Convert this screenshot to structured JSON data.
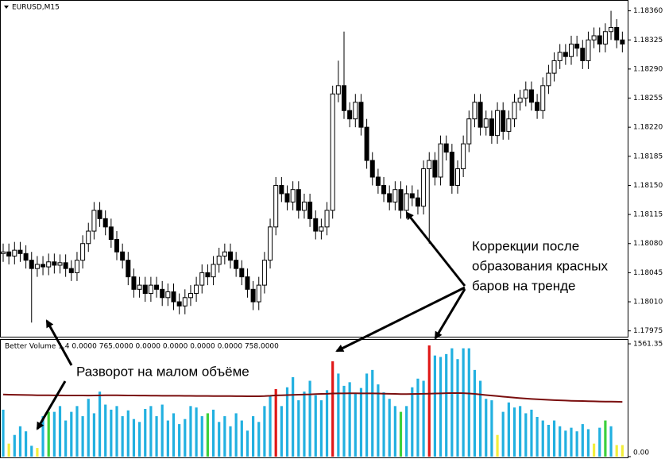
{
  "chart_data": [
    {
      "type": "candlestick",
      "title": "EURUSD,M15",
      "open": [
        1.18068,
        1.1807,
        1.18065,
        1.18072,
        1.18068,
        1.1806,
        1.1805,
        1.18055,
        1.18052,
        1.18058,
        1.18054,
        1.18057,
        1.1805,
        1.18045,
        1.1806,
        1.1808,
        1.18095,
        1.1812,
        1.1811,
        1.181,
        1.18085,
        1.1807,
        1.1806,
        1.1804,
        1.18025,
        1.1803,
        1.1802,
        1.1803,
        1.18025,
        1.18015,
        1.18022,
        1.1801,
        1.18005,
        1.18015,
        1.1802,
        1.1803,
        1.18045,
        1.1804,
        1.18055,
        1.18065,
        1.1807,
        1.1806,
        1.1805,
        1.1804,
        1.18025,
        1.1801,
        1.1803,
        1.1806,
        1.181,
        1.1815,
        1.1814,
        1.1813,
        1.18145,
        1.1812,
        1.1813,
        1.1811,
        1.18095,
        1.181,
        1.1812,
        1.1826,
        1.1827,
        1.1824,
        1.1823,
        1.1825,
        1.1822,
        1.1818,
        1.1816,
        1.1815,
        1.1814,
        1.1813,
        1.18145,
        1.1812,
        1.1814,
        1.18135,
        1.18125,
        1.1817,
        1.1818,
        1.1816,
        1.182,
        1.1819,
        1.1815,
        1.1817,
        1.182,
        1.1823,
        1.1825,
        1.1822,
        1.1823,
        1.1821,
        1.1824,
        1.18215,
        1.1823,
        1.1825,
        1.18255,
        1.18265,
        1.1825,
        1.1824,
        1.1827,
        1.18285,
        1.183,
        1.1831,
        1.18305,
        1.1832,
        1.18315,
        1.183,
        1.18325,
        1.1833,
        1.1832,
        1.18335,
        1.1834,
        1.18325
      ],
      "high": [
        1.1808,
        1.1808,
        1.18082,
        1.18082,
        1.18078,
        1.1807,
        1.18065,
        1.18065,
        1.18068,
        1.18068,
        1.18067,
        1.18067,
        1.1806,
        1.1807,
        1.1809,
        1.18105,
        1.1813,
        1.1813,
        1.1812,
        1.1811,
        1.18095,
        1.1808,
        1.1807,
        1.1805,
        1.1804,
        1.1804,
        1.1804,
        1.1804,
        1.18035,
        1.18032,
        1.18032,
        1.1802,
        1.18025,
        1.1803,
        1.1804,
        1.18055,
        1.18055,
        1.18065,
        1.18075,
        1.1808,
        1.1808,
        1.1807,
        1.1806,
        1.1805,
        1.18035,
        1.1804,
        1.1807,
        1.1811,
        1.1816,
        1.1816,
        1.1815,
        1.18155,
        1.18155,
        1.1814,
        1.1814,
        1.1812,
        1.1811,
        1.1813,
        1.1827,
        1.183,
        1.18335,
        1.1825,
        1.1826,
        1.1826,
        1.1823,
        1.1819,
        1.1817,
        1.1816,
        1.1815,
        1.18155,
        1.18155,
        1.1815,
        1.1815,
        1.18145,
        1.1818,
        1.1819,
        1.1819,
        1.1821,
        1.1821,
        1.182,
        1.1818,
        1.1821,
        1.1824,
        1.1826,
        1.1826,
        1.1824,
        1.1824,
        1.1825,
        1.1825,
        1.1824,
        1.1826,
        1.18265,
        1.18275,
        1.18275,
        1.1826,
        1.1828,
        1.18295,
        1.1831,
        1.1832,
        1.1832,
        1.1833,
        1.1833,
        1.18325,
        1.18335,
        1.1834,
        1.1834,
        1.18345,
        1.1836,
        1.1835,
        1.18335
      ],
      "low": [
        1.18058,
        1.18055,
        1.18055,
        1.18058,
        1.1805,
        1.17985,
        1.1804,
        1.18042,
        1.18042,
        1.18044,
        1.18044,
        1.1804,
        1.18035,
        1.18035,
        1.1805,
        1.1807,
        1.18085,
        1.181,
        1.1809,
        1.18075,
        1.1806,
        1.1805,
        1.1803,
        1.18015,
        1.18015,
        1.1801,
        1.1801,
        1.18015,
        1.18005,
        1.18005,
        1.18,
        1.17995,
        1.17995,
        1.18005,
        1.1801,
        1.1802,
        1.1803,
        1.1803,
        1.18045,
        1.18055,
        1.1805,
        1.1804,
        1.1803,
        1.18015,
        1.18,
        1.18,
        1.1802,
        1.1805,
        1.1809,
        1.1813,
        1.1812,
        1.1812,
        1.1811,
        1.1811,
        1.181,
        1.18085,
        1.18085,
        1.1809,
        1.1811,
        1.1825,
        1.1823,
        1.1822,
        1.1822,
        1.1821,
        1.1817,
        1.1815,
        1.1814,
        1.1813,
        1.1812,
        1.1812,
        1.1811,
        1.1811,
        1.18125,
        1.18115,
        1.18115,
        1.1808,
        1.1815,
        1.1815,
        1.1818,
        1.1814,
        1.1814,
        1.1816,
        1.1819,
        1.1822,
        1.1821,
        1.1821,
        1.182,
        1.182,
        1.18205,
        1.18205,
        1.1822,
        1.1824,
        1.18245,
        1.1824,
        1.1823,
        1.1823,
        1.1826,
        1.18275,
        1.1829,
        1.18295,
        1.18295,
        1.18305,
        1.1829,
        1.1829,
        1.18315,
        1.1831,
        1.1831,
        1.18325,
        1.18315,
        1.1831
      ],
      "close": [
        1.1807,
        1.18065,
        1.18072,
        1.18068,
        1.1806,
        1.1805,
        1.18055,
        1.18052,
        1.18058,
        1.18054,
        1.18057,
        1.1805,
        1.18045,
        1.1806,
        1.1808,
        1.18095,
        1.1812,
        1.1811,
        1.181,
        1.18085,
        1.1807,
        1.1806,
        1.1804,
        1.18025,
        1.1803,
        1.1802,
        1.1803,
        1.18025,
        1.18015,
        1.18022,
        1.1801,
        1.18005,
        1.18015,
        1.1802,
        1.1803,
        1.18045,
        1.1804,
        1.18055,
        1.18065,
        1.1807,
        1.1806,
        1.1805,
        1.1804,
        1.18025,
        1.1801,
        1.1803,
        1.1806,
        1.181,
        1.1815,
        1.1814,
        1.1813,
        1.18145,
        1.1812,
        1.1813,
        1.1811,
        1.18095,
        1.181,
        1.1812,
        1.1826,
        1.1827,
        1.1824,
        1.1823,
        1.1825,
        1.1822,
        1.1818,
        1.1816,
        1.1815,
        1.1814,
        1.1813,
        1.18145,
        1.1812,
        1.1814,
        1.18135,
        1.18125,
        1.1817,
        1.1818,
        1.1816,
        1.182,
        1.1819,
        1.1815,
        1.1817,
        1.182,
        1.1823,
        1.1825,
        1.1822,
        1.1823,
        1.1821,
        1.1824,
        1.18215,
        1.1823,
        1.1825,
        1.18255,
        1.18265,
        1.1825,
        1.1824,
        1.1827,
        1.18285,
        1.183,
        1.1831,
        1.18305,
        1.1832,
        1.18315,
        1.183,
        1.18325,
        1.1833,
        1.1832,
        1.18335,
        1.1834,
        1.18325,
        1.1832
      ],
      "ylim": [
        1.17968,
        1.18373
      ],
      "yticks": [
        1.17975,
        {
          "value": 1.1801,
          "label": "1.18010"
        },
        1.18045,
        {
          "value": 1.1808,
          "label": "1.18080"
        },
        1.18115,
        {
          "value": 1.1815,
          "label": "1.18150"
        },
        1.18185,
        {
          "value": 1.1822,
          "label": "1.18220"
        },
        1.18255,
        {
          "value": 1.1829,
          "label": "1.18290"
        },
        1.18325,
        {
          "value": 1.1836,
          "label": "1.18360"
        }
      ],
      "annotations": [
        "Коррекции после",
        "образования красных",
        "баров на тренде"
      ]
    },
    {
      "type": "bar",
      "title": "Better Volume 1.4 0.0000 765.0000 0.0000 0.0000 0.0000 0.0000 758.0000",
      "series": [
        {
          "type": "bar",
          "values": [
            650,
            180,
            300,
            420,
            350,
            150,
            120,
            560,
            620,
            620,
            700,
            500,
            620,
            700,
            560,
            800,
            600,
            900,
            720,
            650,
            700,
            560,
            640,
            520,
            480,
            660,
            700,
            560,
            720,
            500,
            600,
            450,
            520,
            700,
            680,
            560,
            600,
            650,
            480,
            560,
            420,
            600,
            500,
            360,
            560,
            480,
            700,
            850,
            935,
            700,
            960,
            1100,
            780,
            900,
            1050,
            850,
            780,
            920,
            1320,
            1150,
            980,
            1030,
            880,
            950,
            1150,
            1200,
            1000,
            890,
            800,
            700,
            620,
            700,
            960,
            1080,
            1050,
            1540,
            1400,
            1380,
            1420,
            1500,
            1350,
            1500,
            1500,
            1200,
            1050,
            800,
            780,
            300,
            620,
            750,
            680,
            700,
            600,
            650,
            550,
            500,
            440,
            500,
            420,
            360,
            400,
            350,
            450,
            380,
            180,
            400,
            500,
            420,
            160,
            160
          ],
          "colors": [
            "#22b0e0",
            "#f2ee3a",
            "#22b0e0",
            "#22b0e0",
            "#22b0e0",
            "#22b0e0",
            "#f2ee3a",
            "#22b0e0",
            "#3cd03c",
            "#22b0e0",
            "#22b0e0",
            "#22b0e0",
            "#22b0e0",
            "#22b0e0",
            "#22b0e0",
            "#22b0e0",
            "#22b0e0",
            "#22b0e0",
            "#22b0e0",
            "#22b0e0",
            "#22b0e0",
            "#22b0e0",
            "#22b0e0",
            "#22b0e0",
            "#22b0e0",
            "#22b0e0",
            "#22b0e0",
            "#22b0e0",
            "#22b0e0",
            "#22b0e0",
            "#22b0e0",
            "#22b0e0",
            "#22b0e0",
            "#22b0e0",
            "#22b0e0",
            "#22b0e0",
            "#3cd03c",
            "#22b0e0",
            "#22b0e0",
            "#22b0e0",
            "#22b0e0",
            "#22b0e0",
            "#22b0e0",
            "#22b0e0",
            "#22b0e0",
            "#22b0e0",
            "#22b0e0",
            "#22b0e0",
            "#e01818",
            "#22b0e0",
            "#22b0e0",
            "#22b0e0",
            "#22b0e0",
            "#22b0e0",
            "#22b0e0",
            "#22b0e0",
            "#22b0e0",
            "#22b0e0",
            "#e01818",
            "#22b0e0",
            "#22b0e0",
            "#22b0e0",
            "#22b0e0",
            "#22b0e0",
            "#22b0e0",
            "#22b0e0",
            "#22b0e0",
            "#22b0e0",
            "#22b0e0",
            "#22b0e0",
            "#3cd03c",
            "#22b0e0",
            "#22b0e0",
            "#22b0e0",
            "#22b0e0",
            "#e01818",
            "#22b0e0",
            "#22b0e0",
            "#22b0e0",
            "#22b0e0",
            "#22b0e0",
            "#22b0e0",
            "#22b0e0",
            "#22b0e0",
            "#22b0e0",
            "#22b0e0",
            "#22b0e0",
            "#f2ee3a",
            "#22b0e0",
            "#22b0e0",
            "#22b0e0",
            "#22b0e0",
            "#22b0e0",
            "#22b0e0",
            "#22b0e0",
            "#22b0e0",
            "#22b0e0",
            "#22b0e0",
            "#22b0e0",
            "#22b0e0",
            "#22b0e0",
            "#22b0e0",
            "#22b0e0",
            "#22b0e0",
            "#f2ee3a",
            "#22b0e0",
            "#3cd03c",
            "#22b0e0",
            "#f2ee3a",
            "#f2ee3a"
          ]
        },
        {
          "type": "line",
          "color": "#7a0e0e",
          "values": [
            860,
            858,
            856,
            855,
            853,
            852,
            850,
            850,
            849,
            848,
            848,
            847,
            847,
            846,
            846,
            845,
            846,
            848,
            850,
            850,
            849,
            848,
            847,
            846,
            845,
            845,
            844,
            844,
            843,
            843,
            842,
            842,
            841,
            841,
            840,
            840,
            840,
            839,
            839,
            838,
            838,
            837,
            837,
            836,
            836,
            836,
            838,
            842,
            848,
            850,
            852,
            855,
            857,
            860,
            862,
            866,
            868,
            870,
            874,
            876,
            876,
            877,
            877,
            876,
            876,
            875,
            874,
            872,
            870,
            868,
            866,
            866,
            867,
            868,
            870,
            872,
            874,
            876,
            878,
            880,
            880,
            878,
            874,
            868,
            860,
            852,
            845,
            838,
            830,
            823,
            816,
            810,
            804,
            799,
            794,
            790,
            786,
            782,
            779,
            776,
            773,
            771,
            769,
            767,
            765,
            763,
            762,
            761,
            760,
            758
          ]
        }
      ],
      "ylim": [
        0,
        1561.35
      ],
      "yticks": [
        {
          "value": 0,
          "label": "0.00"
        },
        1561.35
      ],
      "annotations": [
        "Разворот на малом объёме"
      ]
    }
  ]
}
